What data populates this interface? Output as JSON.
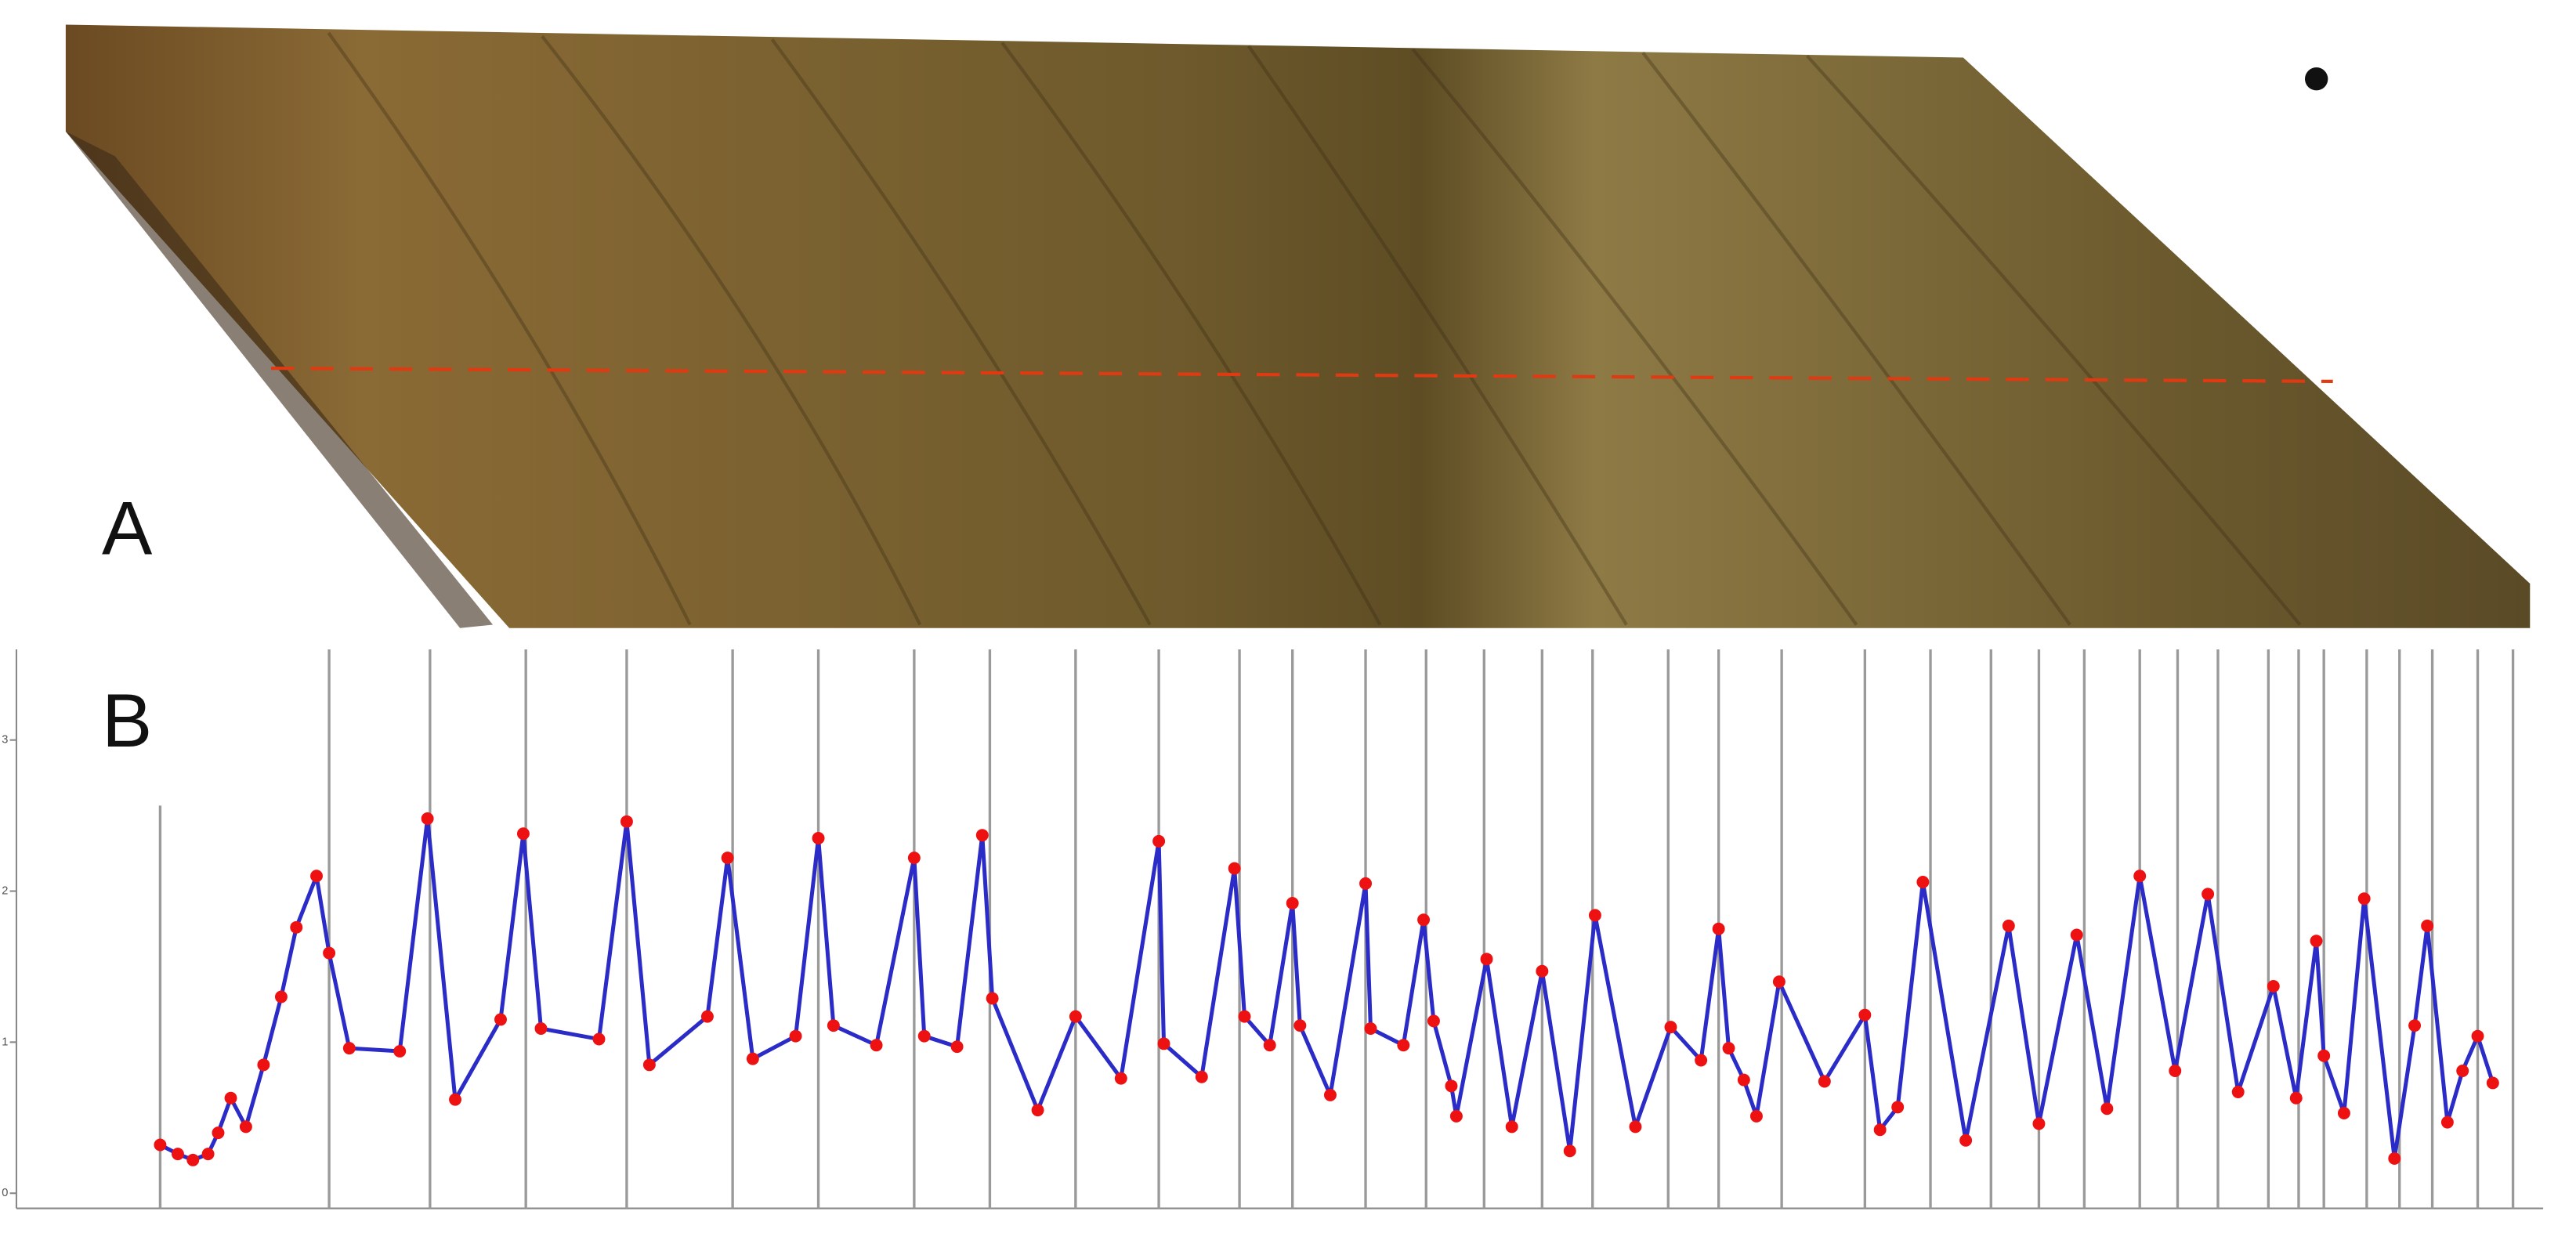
{
  "panel_labels": [
    "A",
    "B"
  ],
  "chart_data": {
    "type": "line",
    "xlim": [
      0,
      100
    ],
    "ylim": [
      -0.1,
      3.6
    ],
    "yticks": [
      0,
      1,
      2,
      3
    ],
    "x": [
      5.7,
      6.4,
      7.0,
      7.6,
      8.0,
      8.5,
      9.1,
      9.8,
      10.5,
      11.1,
      11.9,
      12.4,
      13.2,
      15.2,
      16.3,
      17.4,
      19.2,
      20.1,
      20.8,
      23.1,
      24.2,
      25.1,
      27.4,
      28.2,
      29.2,
      30.9,
      31.8,
      32.4,
      34.1,
      35.6,
      36.0,
      37.3,
      38.3,
      38.7,
      40.5,
      42.0,
      43.8,
      45.3,
      45.5,
      47.0,
      48.3,
      48.7,
      49.7,
      50.6,
      50.9,
      52.1,
      53.5,
      53.7,
      55.0,
      55.8,
      56.2,
      56.9,
      57.1,
      58.3,
      59.3,
      60.5,
      61.6,
      62.6,
      64.2,
      65.6,
      66.8,
      67.5,
      67.9,
      68.5,
      69.0,
      69.9,
      71.7,
      73.3,
      73.9,
      74.6,
      75.6,
      77.3,
      79.0,
      80.2,
      81.7,
      82.9,
      84.2,
      85.6,
      86.9,
      88.1,
      89.5,
      90.4,
      91.2,
      91.5,
      92.3,
      93.1,
      94.3,
      95.1,
      95.6,
      96.4,
      97.0,
      97.6,
      98.2
    ],
    "series": [
      {
        "color": "#2b2bc8",
        "marker_color": "#ee1111",
        "values": [
          0.32,
          0.26,
          0.22,
          0.26,
          0.4,
          0.63,
          0.44,
          0.85,
          1.3,
          1.76,
          2.1,
          1.59,
          0.96,
          0.94,
          2.48,
          0.62,
          1.15,
          2.38,
          1.09,
          1.02,
          2.46,
          0.85,
          1.17,
          2.22,
          0.89,
          1.04,
          2.35,
          1.11,
          0.98,
          2.22,
          1.04,
          0.97,
          2.37,
          1.29,
          0.55,
          1.17,
          0.76,
          2.33,
          0.99,
          0.77,
          2.15,
          1.17,
          0.98,
          1.92,
          1.11,
          0.65,
          2.05,
          1.09,
          0.98,
          1.81,
          1.14,
          0.71,
          0.51,
          1.55,
          0.44,
          1.47,
          0.28,
          1.84,
          0.44,
          1.1,
          0.88,
          1.75,
          0.96,
          0.75,
          0.51,
          1.4,
          0.74,
          1.18,
          0.42,
          0.57,
          2.06,
          0.35,
          1.77,
          0.46,
          1.71,
          0.56,
          2.1,
          0.81,
          1.98,
          0.67,
          1.37,
          0.63,
          1.67,
          0.91,
          0.53,
          1.95,
          0.23,
          1.11,
          1.77,
          0.47,
          0.81,
          1.04,
          0.73
        ]
      }
    ],
    "markers": [
      5.7,
      12.4,
      16.4,
      20.2,
      24.2,
      28.4,
      31.8,
      35.6,
      38.6,
      42.0,
      45.3,
      48.5,
      50.6,
      53.5,
      55.9,
      58.2,
      60.5,
      62.5,
      65.5,
      67.5,
      70.0,
      73.3,
      75.9,
      78.3,
      80.2,
      82.0,
      84.2,
      85.7,
      87.3,
      89.3,
      90.5,
      91.5,
      93.2,
      94.5,
      95.8,
      97.6,
      99.0
    ],
    "marker_color": "#9a9a9a"
  }
}
